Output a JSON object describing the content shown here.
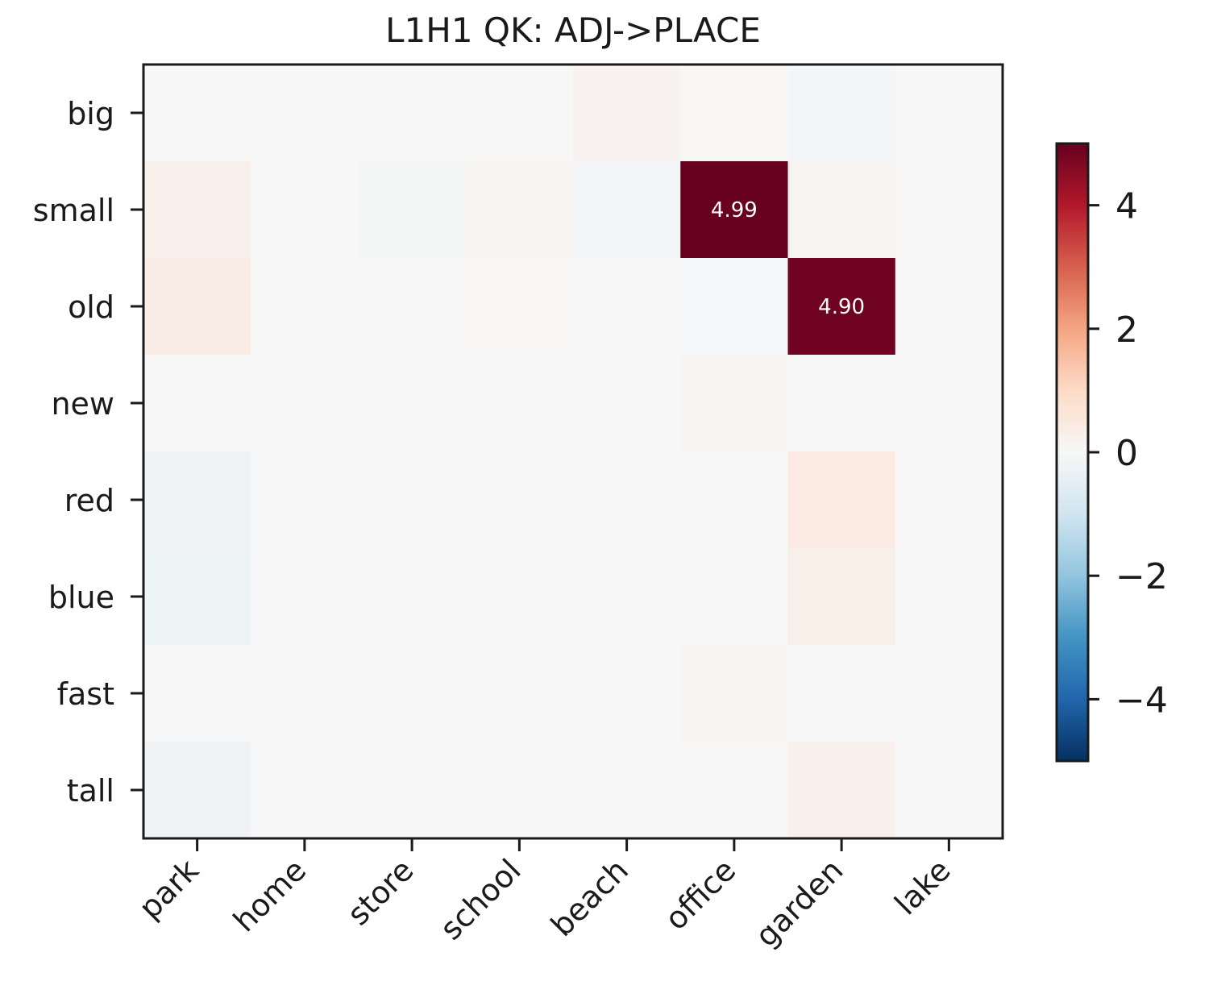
{
  "chart_data": {
    "type": "heatmap",
    "title": "L1H1 QK: ADJ->PLACE",
    "rows": [
      "big",
      "small",
      "old",
      "new",
      "red",
      "blue",
      "fast",
      "tall"
    ],
    "columns": [
      "park",
      "home",
      "store",
      "school",
      "beach",
      "office",
      "garden",
      "lake"
    ],
    "values": [
      [
        0.0,
        0.0,
        0.0,
        0.0,
        0.15,
        0.05,
        -0.1,
        0.0
      ],
      [
        0.25,
        0.0,
        -0.08,
        0.12,
        -0.1,
        4.99,
        0.1,
        0.0
      ],
      [
        0.4,
        0.0,
        0.0,
        0.05,
        0.0,
        -0.05,
        4.9,
        0.0
      ],
      [
        0.0,
        0.0,
        0.0,
        0.0,
        0.0,
        0.1,
        0.0,
        0.0
      ],
      [
        -0.2,
        0.0,
        0.0,
        0.0,
        0.0,
        0.0,
        0.45,
        0.0
      ],
      [
        -0.25,
        0.0,
        0.0,
        0.0,
        0.0,
        0.0,
        0.3,
        0.0
      ],
      [
        0.0,
        0.0,
        0.0,
        0.0,
        0.0,
        0.1,
        0.0,
        0.0
      ],
      [
        -0.2,
        0.0,
        0.0,
        0.0,
        0.0,
        0.0,
        0.25,
        0.0
      ]
    ],
    "annotations": [
      {
        "row": "small",
        "column": "office",
        "text": "4.99"
      },
      {
        "row": "old",
        "column": "garden",
        "text": "4.90"
      }
    ],
    "colormap": "RdBu_r",
    "vmin": -5,
    "vmax": 5,
    "colorbar_ticks": [
      4,
      2,
      0,
      -2,
      -4
    ],
    "colorbar_tick_labels": [
      "4",
      "2",
      "0",
      "−2",
      "−4"
    ],
    "grid": false
  }
}
